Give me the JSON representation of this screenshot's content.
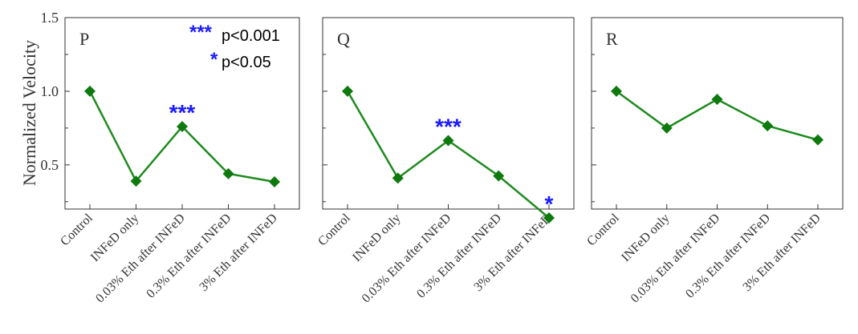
{
  "chart_data": {
    "type": "line",
    "ylabel": "Normalized Velocity",
    "ylim": [
      0.2,
      1.5
    ],
    "yticks": [
      0.5,
      1.0,
      1.5
    ],
    "ytick_labels": [
      "0.5",
      "1.0",
      "1.5"
    ],
    "categories": [
      "Control",
      "INFeD only",
      "0.03% Eth after INFeD",
      "0.3% Eth after INFeD",
      "3% Eth after INFeD"
    ],
    "line_color": "#1e8a1e",
    "marker_color": "#0e7a0e",
    "significance_color": "#1a1aff",
    "legend": [
      {
        "stars": "***",
        "text": "p<0.001"
      },
      {
        "stars": "*",
        "text": "p<0.05"
      }
    ],
    "panels": [
      {
        "label": "P",
        "values": [
          1.0,
          0.39,
          0.76,
          0.44,
          0.385
        ],
        "annotations": [
          {
            "index": 2,
            "text": "***"
          }
        ]
      },
      {
        "label": "Q",
        "values": [
          1.0,
          0.41,
          0.665,
          0.425,
          0.14
        ],
        "annotations": [
          {
            "index": 2,
            "text": "***"
          },
          {
            "index": 4,
            "text": "*"
          }
        ]
      },
      {
        "label": "R",
        "values": [
          1.0,
          0.75,
          0.945,
          0.765,
          0.67
        ],
        "annotations": []
      }
    ]
  }
}
